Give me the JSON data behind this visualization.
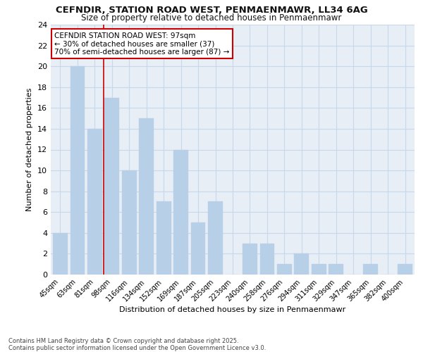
{
  "title1": "CEFNDIR, STATION ROAD WEST, PENMAENMAWR, LL34 6AG",
  "title2": "Size of property relative to detached houses in Penmaenmawr",
  "xlabel": "Distribution of detached houses by size in Penmaenmawr",
  "ylabel": "Number of detached properties",
  "footnote": "Contains HM Land Registry data © Crown copyright and database right 2025.\nContains public sector information licensed under the Open Government Licence v3.0.",
  "bar_labels": [
    "45sqm",
    "63sqm",
    "81sqm",
    "98sqm",
    "116sqm",
    "134sqm",
    "152sqm",
    "169sqm",
    "187sqm",
    "205sqm",
    "223sqm",
    "240sqm",
    "258sqm",
    "276sqm",
    "294sqm",
    "311sqm",
    "329sqm",
    "347sqm",
    "365sqm",
    "382sqm",
    "400sqm"
  ],
  "bar_values": [
    4,
    20,
    14,
    17,
    10,
    15,
    7,
    12,
    5,
    7,
    0,
    3,
    3,
    1,
    2,
    1,
    1,
    0,
    1,
    0,
    1
  ],
  "bar_color": "#b8cfe8",
  "bar_edge_color": "#b8cfe8",
  "grid_color": "#c8d8ec",
  "vline_color": "#cc0000",
  "annotation_text": "CEFNDIR STATION ROAD WEST: 97sqm\n← 30% of detached houses are smaller (37)\n70% of semi-detached houses are larger (87) →",
  "annotation_box_color": "#cc0000",
  "annotation_bg": "#ffffff",
  "ylim": [
    0,
    24
  ],
  "yticks": [
    0,
    2,
    4,
    6,
    8,
    10,
    12,
    14,
    16,
    18,
    20,
    22,
    24
  ],
  "bg_color": "#ffffff",
  "plot_bg_color": "#e8eef5"
}
